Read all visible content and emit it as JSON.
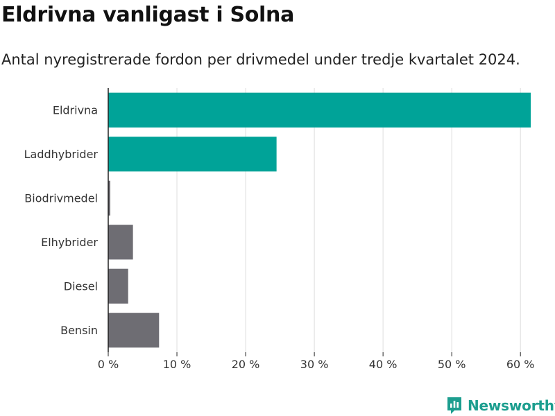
{
  "title": "Eldrivna vanligast i Solna",
  "subtitle": "Antal nyregistrerade fordon per drivmedel under tredje kvartalet 2024.",
  "brand": {
    "name": "Newsworthy",
    "color": "#1c9e8f",
    "icon": "newsworthy-logo-icon"
  },
  "colors": {
    "highlight": "#00a398",
    "neutral": "#6e6d73",
    "grid": "#dddddd",
    "axis": "#222222"
  },
  "chart_data": {
    "type": "bar",
    "orientation": "horizontal",
    "categories": [
      "Eldrivna",
      "Laddhybrider",
      "Biodrivmedel",
      "Elhybrider",
      "Diesel",
      "Bensin"
    ],
    "values": [
      61.5,
      24.5,
      0.3,
      3.6,
      2.9,
      7.4
    ],
    "highlighted": [
      true,
      true,
      false,
      false,
      false,
      false
    ],
    "unit": "%",
    "xlim": [
      0,
      62
    ],
    "xticks": [
      0,
      10,
      20,
      30,
      40,
      50,
      60
    ],
    "xtick_labels": [
      "0 %",
      "10 %",
      "20 %",
      "30 %",
      "40 %",
      "50 %",
      "60 %"
    ],
    "grid": true,
    "xlabel": "",
    "ylabel": ""
  }
}
